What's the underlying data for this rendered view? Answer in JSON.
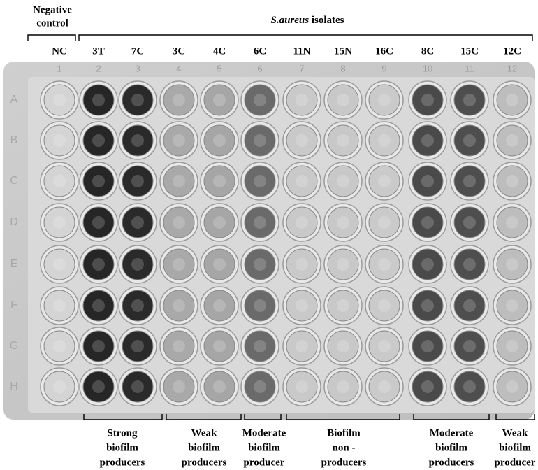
{
  "top": {
    "negative_control": [
      "Negative",
      "control"
    ],
    "species": "S.aureus",
    "isolates": " isolates"
  },
  "columns": [
    "NC",
    "3T",
    "7C",
    "3C",
    "4C",
    "6C",
    "11N",
    "15N",
    "16C",
    "8C",
    "15C",
    "12C"
  ],
  "plate_numbers": [
    "1",
    "2",
    "3",
    "4",
    "5",
    "6",
    "7",
    "8",
    "9",
    "10",
    "11",
    "12"
  ],
  "rows": [
    "A",
    "B",
    "C",
    "D",
    "E",
    "F",
    "G",
    "H"
  ],
  "groups": [
    {
      "lines": [
        "Strong",
        "biofilm",
        "producers"
      ]
    },
    {
      "lines": [
        "Weak",
        "biofilm",
        "producers"
      ]
    },
    {
      "lines": [
        "Moderate",
        "biofilm",
        "producer"
      ]
    },
    {
      "lines": [
        "Biofilm",
        "non -",
        "producers"
      ]
    },
    {
      "lines": [
        "Moderate",
        "biofilm",
        "producers"
      ]
    },
    {
      "lines": [
        "Weak",
        "biofilm",
        "producer"
      ]
    }
  ]
}
